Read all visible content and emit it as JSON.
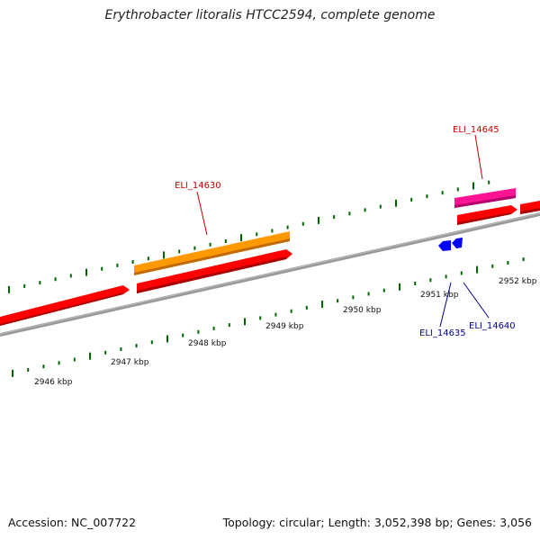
{
  "title": "Erythrobacter litoralis HTCC2594, complete genome",
  "footer": {
    "accession": "Accession: NC_007722",
    "summary": "Topology: circular; Length: 3,052,398 bp; Genes: 3,056"
  },
  "colors": {
    "cds_forward": "#ff0000",
    "highlight_orange": "#ff9900",
    "highlight_pink": "#ff1493",
    "reverse_gene": "#0000ff",
    "label_forward": "#cc0000",
    "label_reverse": "#000099",
    "ticks": "#006600",
    "backbone": "#888888"
  },
  "scale_labels": [
    "2946 kbp",
    "2947 kbp",
    "2948 kbp",
    "2949 kbp",
    "2950 kbp",
    "2951 kbp",
    "2952 kbp"
  ],
  "gene_labels": {
    "eli14630": "ELI_14630",
    "eli14645": "ELI_14645",
    "eli14635": "ELI_14635",
    "eli14640": "ELI_14640"
  }
}
